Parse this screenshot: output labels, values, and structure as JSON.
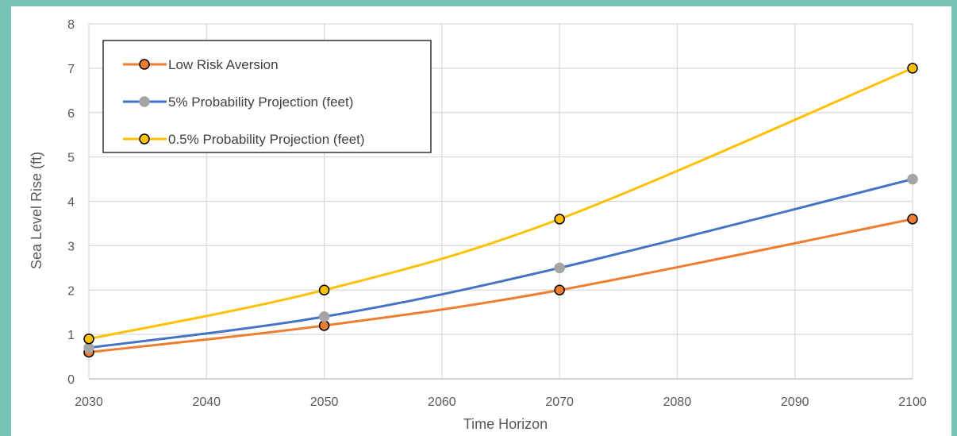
{
  "chart_data": {
    "type": "line",
    "title": "",
    "xlabel": "Time Horizon",
    "ylabel": "Sea Level Rise (ft)",
    "x": [
      2030,
      2050,
      2070,
      2100
    ],
    "xlim": [
      2030,
      2100
    ],
    "ylim": [
      0,
      8
    ],
    "xticks": [
      "2030",
      "2040",
      "2050",
      "2060",
      "2070",
      "2080",
      "2090",
      "2100"
    ],
    "yticks": [
      "0",
      "1",
      "2",
      "3",
      "4",
      "5",
      "6",
      "7",
      "8"
    ],
    "grid": true,
    "smooth": true,
    "legend_position": "top-left",
    "series": [
      {
        "name": "Low Risk Aversion",
        "values": [
          0.6,
          1.2,
          2.0,
          3.6
        ],
        "color": "#ed7d31",
        "marker_color": "#ed7d31"
      },
      {
        "name": "5% Probability Projection (feet)",
        "values": [
          0.7,
          1.4,
          2.5,
          4.5
        ],
        "color": "#4472c4",
        "marker_color": "#a5a5a5"
      },
      {
        "name": "0.5% Probability Projection (feet)",
        "values": [
          0.9,
          2.0,
          3.6,
          7.0
        ],
        "color": "#ffc000",
        "marker_color": "#ffc000"
      }
    ]
  }
}
